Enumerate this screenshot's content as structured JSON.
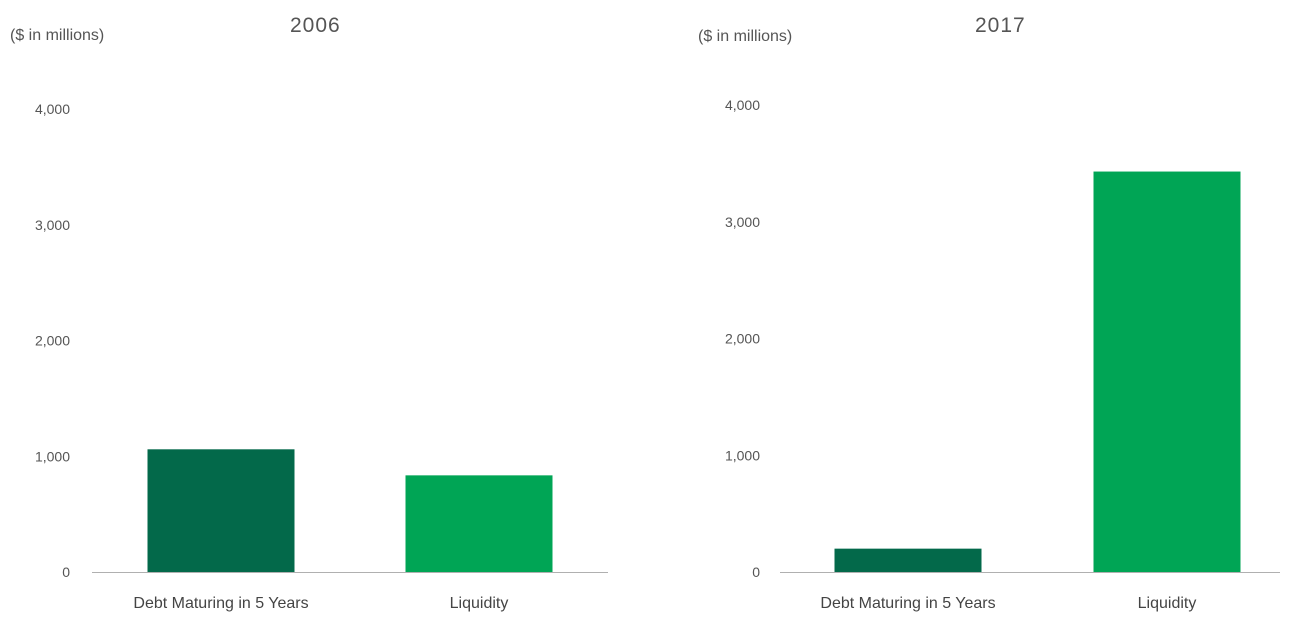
{
  "chart_data": [
    {
      "type": "bar",
      "title": "2006",
      "unit_label": "($ in millions)",
      "categories": [
        "Debt Maturing in 5 Years",
        "Liquidity"
      ],
      "values": [
        1060,
        835
      ],
      "colors": [
        "#03694a",
        "#00a555"
      ],
      "yticks": [
        "0",
        "1,000",
        "2,000",
        "3,000",
        "4,000"
      ],
      "ylim": [
        0,
        4000
      ],
      "grid": false
    },
    {
      "type": "bar",
      "title": "2017",
      "unit_label": "($ in millions)",
      "categories": [
        "Debt Maturing in 5 Years",
        "Liquidity"
      ],
      "values": [
        200,
        3430
      ],
      "colors": [
        "#03694a",
        "#00a555"
      ],
      "yticks": [
        "0",
        "1,000",
        "2,000",
        "3,000",
        "4,000"
      ],
      "ylim": [
        0,
        4000
      ],
      "grid": false
    }
  ]
}
